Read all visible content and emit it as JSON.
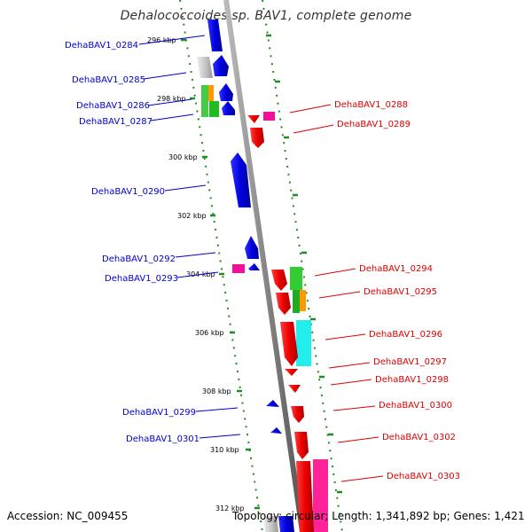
{
  "title": "Dehalococcoides sp. BAV1, complete genome",
  "footer": {
    "accession": "Accession: NC_009455",
    "stats": "Topology: circular; Length: 1,341,892 bp; Genes: 1,421"
  },
  "ticks": [
    {
      "label": "296 kbp"
    },
    {
      "label": "298 kbp"
    },
    {
      "label": "300 kbp"
    },
    {
      "label": "302 kbp"
    },
    {
      "label": "304 kbp"
    },
    {
      "label": "306 kbp"
    },
    {
      "label": "308 kbp"
    },
    {
      "label": "310 kbp"
    },
    {
      "label": "312 kbp"
    }
  ],
  "genes_left": [
    {
      "label": "DehaBAV1_0284"
    },
    {
      "label": "DehaBAV1_0285"
    },
    {
      "label": "DehaBAV1_0286"
    },
    {
      "label": "DehaBAV1_0287"
    },
    {
      "label": "DehaBAV1_0290"
    },
    {
      "label": "DehaBAV1_0292"
    },
    {
      "label": "DehaBAV1_0293"
    },
    {
      "label": "DehaBAV1_0299"
    },
    {
      "label": "DehaBAV1_0301"
    }
  ],
  "genes_right": [
    {
      "label": "DehaBAV1_0288"
    },
    {
      "label": "DehaBAV1_0289"
    },
    {
      "label": "DehaBAV1_0294"
    },
    {
      "label": "DehaBAV1_0295"
    },
    {
      "label": "DehaBAV1_0296"
    },
    {
      "label": "DehaBAV1_0297"
    },
    {
      "label": "DehaBAV1_0298"
    },
    {
      "label": "DehaBAV1_0300"
    },
    {
      "label": "DehaBAV1_0302"
    },
    {
      "label": "DehaBAV1_0303"
    }
  ],
  "colors": {
    "forward": "#0000ee",
    "reverse": "#ee0000",
    "backbone": "#888888",
    "dots": "#228b22",
    "left_label": "#0000cc",
    "right_label": "#dd0000"
  }
}
